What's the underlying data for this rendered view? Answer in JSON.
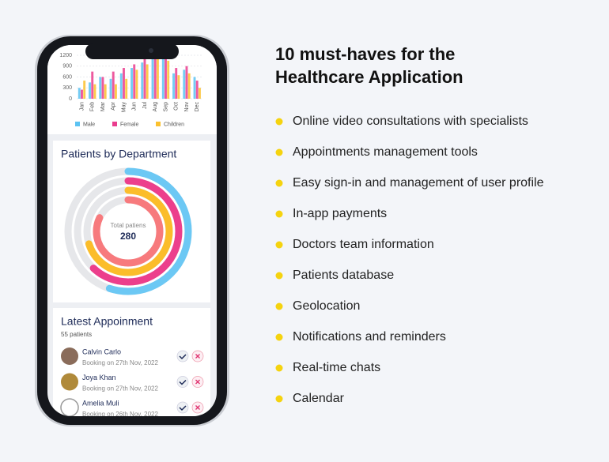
{
  "chart_data": {
    "type": "bar",
    "categories": [
      "Jan",
      "Feb",
      "Mar",
      "Apr",
      "May",
      "Jun",
      "Jul",
      "Aug",
      "Sep",
      "Oct",
      "Nov",
      "Dec"
    ],
    "series": [
      {
        "name": "Male",
        "color": "#5cc3f2",
        "values": [
          300,
          450,
          600,
          550,
          700,
          850,
          1000,
          1200,
          1150,
          700,
          800,
          600
        ]
      },
      {
        "name": "Female",
        "color": "#ea3d8e",
        "values": [
          250,
          750,
          600,
          750,
          850,
          950,
          1100,
          1200,
          1200,
          850,
          900,
          500
        ]
      },
      {
        "name": "Children",
        "color": "#fbc12e",
        "values": [
          500,
          400,
          400,
          400,
          550,
          800,
          950,
          1100,
          1050,
          650,
          700,
          300
        ]
      }
    ],
    "ylim": [
      0,
      1200
    ],
    "yticks": [
      0,
      300,
      600,
      900,
      1200
    ],
    "grid": true
  },
  "donut": {
    "title": "Patients by Department",
    "center_label": "Total patiens",
    "total": "280",
    "rings": [
      {
        "color": "#6cc8f4",
        "value": 55
      },
      {
        "color": "#ec3f8c",
        "value": 62
      },
      {
        "color": "#fbbd2a",
        "value": 70
      },
      {
        "color": "#f77a7d",
        "value": 82
      }
    ]
  },
  "appointments": {
    "title": "Latest Appoinment",
    "subtitle": "55 patients",
    "rows": [
      {
        "name": "Calvin Carlo",
        "booking": "Booking on 27th Nov, 2022"
      },
      {
        "name": "Joya Khan",
        "booking": "Booking on 27th Nov, 2022"
      },
      {
        "name": "Amelia Muli",
        "booking": "Booking on 26th Nov, 2022"
      }
    ]
  },
  "header": {
    "title_lines": [
      "10 must-haves for the",
      "Healthcare Application"
    ]
  },
  "features": [
    "Online video consultations with specialists",
    "Appointments management tools",
    "Easy sign-in and management of user profile",
    "In-app payments",
    "Doctors team information",
    "Patients database",
    "Geolocation",
    "Notifications and reminders",
    "Real-time chats",
    "Calendar"
  ]
}
